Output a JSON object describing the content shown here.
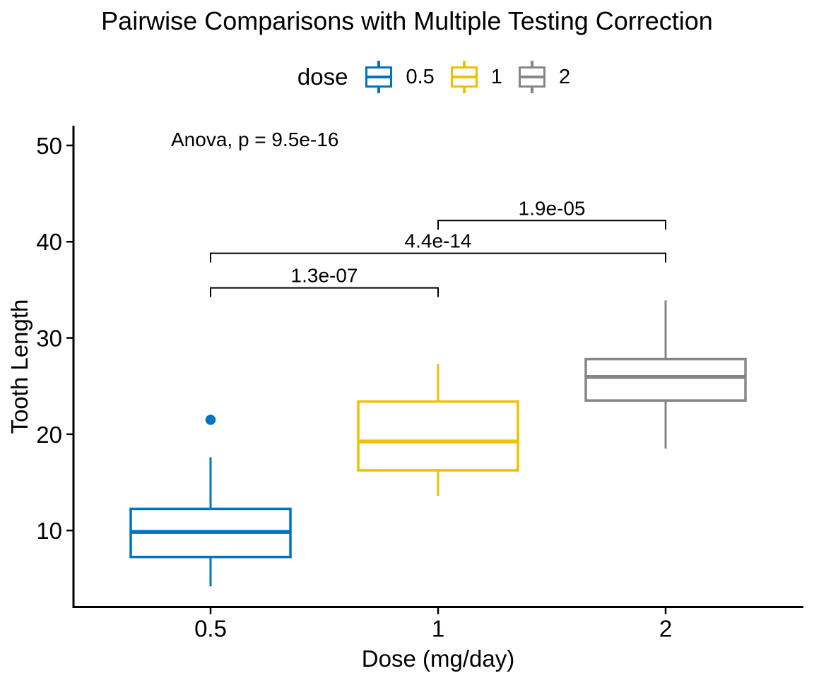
{
  "title": "Pairwise Comparisons with Multiple Testing Correction",
  "annotations": {
    "anova": "Anova, p = 9.5e-16"
  },
  "legend": {
    "title": "dose",
    "position": "top",
    "entries": [
      {
        "label": "0.5",
        "color": "#0073C2"
      },
      {
        "label": "1",
        "color": "#EFC000"
      },
      {
        "label": "2",
        "color": "#868686"
      }
    ]
  },
  "chart_data": {
    "type": "boxplot",
    "title": "Pairwise Comparisons with Multiple Testing Correction",
    "xlabel": "Dose (mg/day)",
    "ylabel": "Tooth Length",
    "categories": [
      "0.5",
      "1",
      "2"
    ],
    "y_ticks": [
      10,
      20,
      30,
      40,
      50
    ],
    "ylim": [
      2.05,
      52.05
    ],
    "grid": "off",
    "legend_position": "top",
    "series": [
      {
        "name": "0.5",
        "color": "#0073C2",
        "whisker_low": 4.2,
        "q1": 7.25,
        "median": 9.85,
        "q3": 12.25,
        "whisker_high": 17.6,
        "outliers": [
          21.5
        ]
      },
      {
        "name": "1",
        "color": "#EFC000",
        "whisker_low": 13.6,
        "q1": 16.25,
        "median": 19.25,
        "q3": 23.4,
        "whisker_high": 27.3,
        "outliers": []
      },
      {
        "name": "2",
        "color": "#868686",
        "whisker_low": 18.5,
        "q1": 23.5,
        "median": 25.95,
        "q3": 27.8,
        "whisker_high": 33.9,
        "outliers": []
      }
    ],
    "comparisons": [
      {
        "group1": "0.5",
        "group2": "1",
        "label": "1.3e-07",
        "y": 35.2
      },
      {
        "group1": "0.5",
        "group2": "2",
        "label": "4.4e-14",
        "y": 38.8
      },
      {
        "group1": "1",
        "group2": "2",
        "label": "1.9e-05",
        "y": 42.2
      }
    ]
  }
}
